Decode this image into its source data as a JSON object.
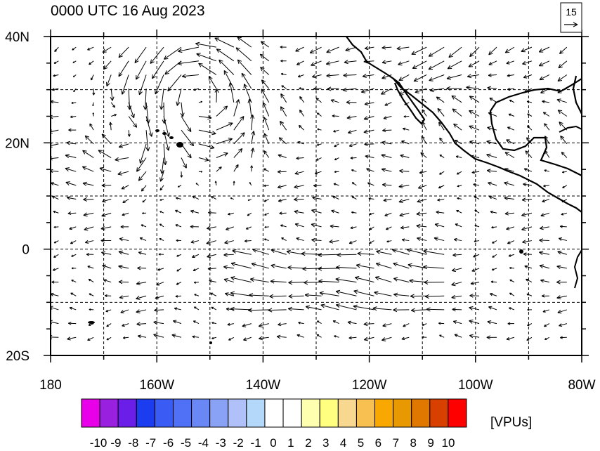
{
  "title": "0000 UTC 16 Aug 2023",
  "reference_vector": {
    "label": "15",
    "magnitude": 15
  },
  "map": {
    "lon_range": [
      -180,
      -80
    ],
    "lat_range": [
      -20,
      40
    ],
    "gridline_style": "dashed",
    "lon_gridlines": [
      -170,
      -160,
      -150,
      -140,
      -130,
      -120,
      -110,
      -100,
      -90
    ],
    "lat_gridlines": [
      -10,
      0,
      10,
      20,
      30
    ]
  },
  "axes": {
    "y_ticks": [
      {
        "value": 40,
        "label": "40N"
      },
      {
        "value": 20,
        "label": "20N"
      },
      {
        "value": 0,
        "label": "0"
      },
      {
        "value": -20,
        "label": "20S"
      }
    ],
    "x_ticks": [
      {
        "value": -180,
        "label": "180"
      },
      {
        "value": -160,
        "label": "160W"
      },
      {
        "value": -140,
        "label": "140W"
      },
      {
        "value": -120,
        "label": "120W"
      },
      {
        "value": -100,
        "label": "100W"
      },
      {
        "value": -80,
        "label": "80W"
      }
    ]
  },
  "colorbar": {
    "unit_label": "[VPUs]",
    "labels": [
      "-10",
      "-9",
      "-8",
      "-7",
      "-6",
      "-5",
      "-4",
      "-3",
      "-2",
      "-1",
      "0",
      "1",
      "2",
      "3",
      "4",
      "5",
      "6",
      "7",
      "8",
      "9",
      "10"
    ],
    "colors": [
      "#e800e8",
      "#9a20e0",
      "#6a1ee8",
      "#1c3cf0",
      "#3a5cf5",
      "#5070f5",
      "#6a88f5",
      "#8aa2f5",
      "#b0c0f8",
      "#b4d8fa",
      "#ffffff",
      "#ffffff",
      "#ffffb0",
      "#ffff80",
      "#f8d890",
      "#f8c050",
      "#f8a800",
      "#e89800",
      "#e07800",
      "#d84000",
      "#ff0000"
    ]
  }
}
